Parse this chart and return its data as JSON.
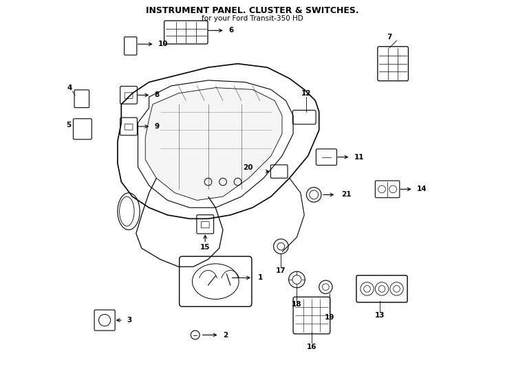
{
  "title": "INSTRUMENT PANEL. CLUSTER & SWITCHES.",
  "subtitle": "for your Ford Transit-350 HD",
  "background_color": "#ffffff",
  "line_color": "#000000",
  "text_color": "#000000",
  "fig_width": 7.34,
  "fig_height": 5.4,
  "dpi": 100
}
